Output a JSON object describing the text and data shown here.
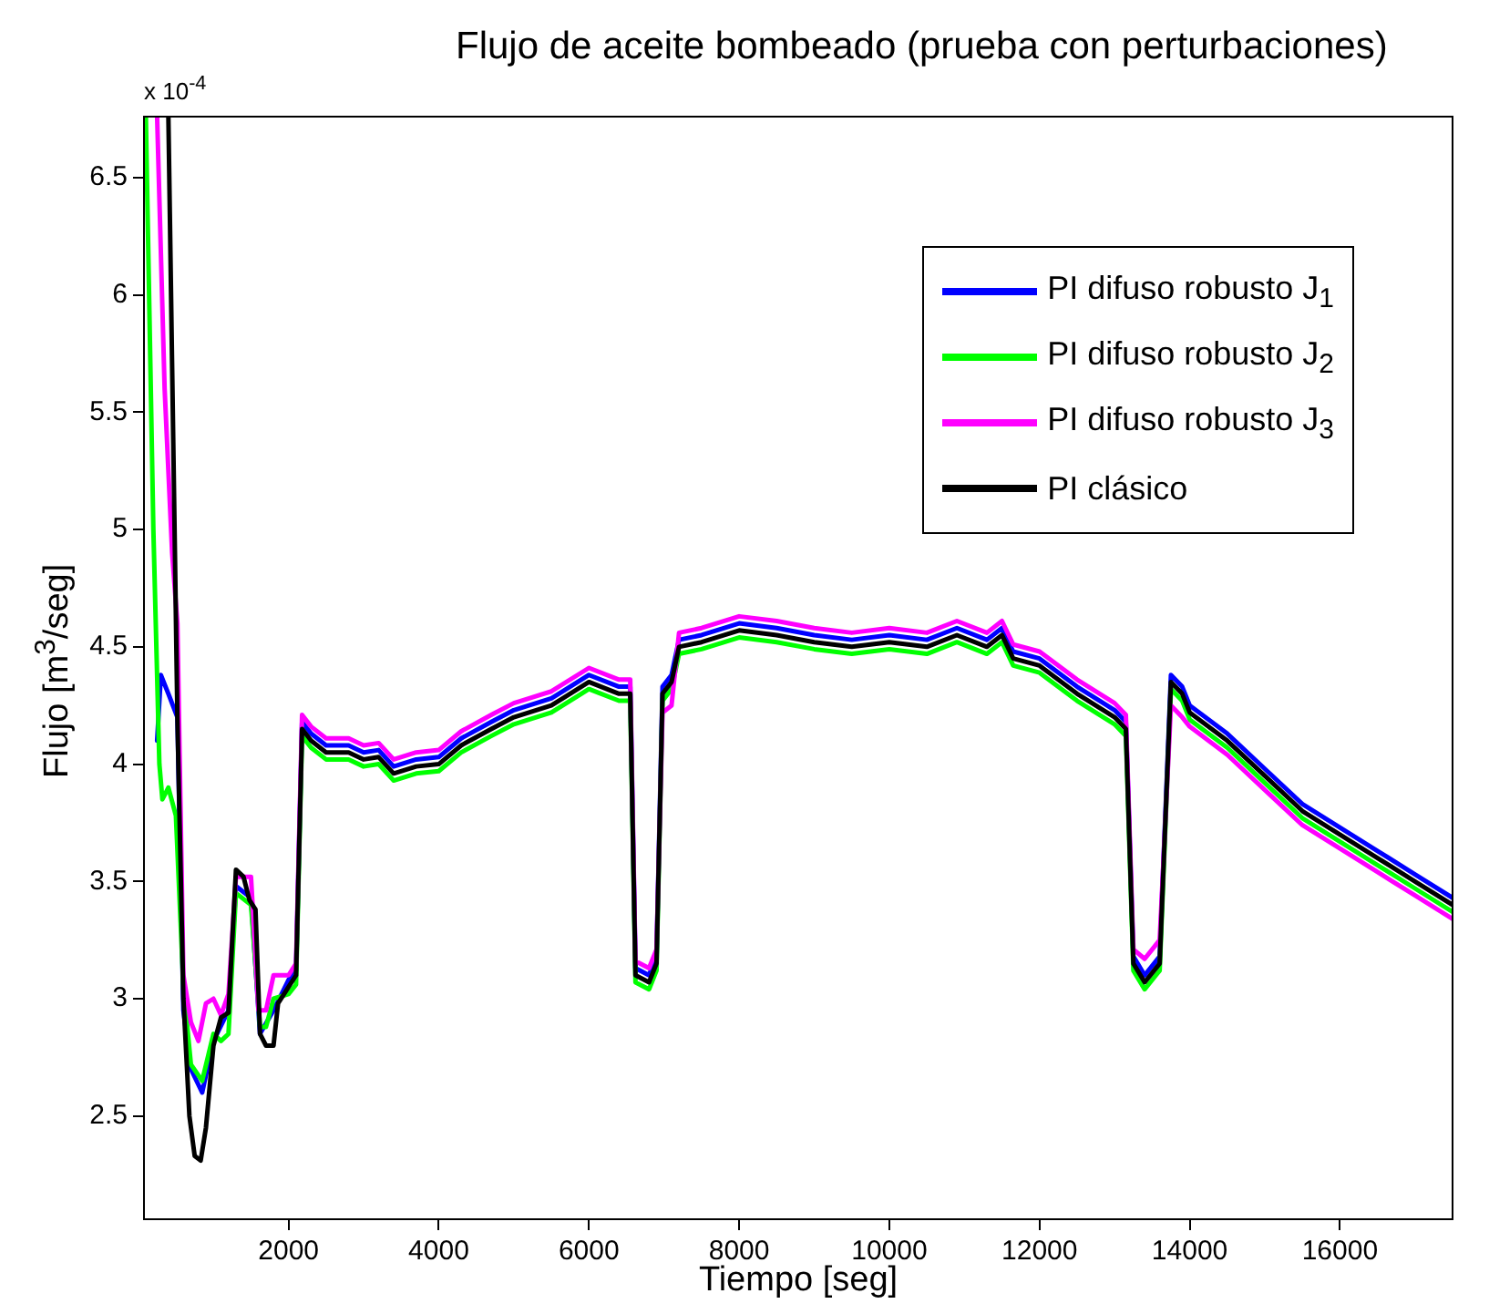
{
  "chart_data": {
    "type": "line",
    "title": "Flujo de aceite bombeado (prueba con perturbaciones)",
    "xlabel": "Tiempo [seg]",
    "ylabel": "Flujo [m$^{3}$/seg]",
    "annotations": [
      "x 10$^{-4}$"
    ],
    "xlim": [
      75,
      17500
    ],
    "xticks": [
      2000,
      4000,
      6000,
      8000,
      10000,
      12000,
      14000,
      16000
    ],
    "ylim": [
      2.06,
      6.76
    ],
    "yticks": [
      2.5,
      3,
      3.5,
      4,
      4.5,
      5,
      5.5,
      6,
      6.5
    ],
    "grid": false,
    "legend": "top right",
    "line_style": "solid",
    "marker": "none",
    "series": [
      {
        "name": "PI difuso robusto J$_{1}$",
        "color": "#0000ff",
        "x": [
          250,
          300,
          400,
          520,
          600,
          700,
          850,
          1000,
          1200,
          1300,
          1500,
          1620,
          1800,
          2000,
          2100,
          2180,
          2300,
          2500,
          2800,
          3000,
          3200,
          3400,
          3700,
          4000,
          4300,
          4700,
          5000,
          5500,
          6000,
          6400,
          6550,
          6620,
          6800,
          6900,
          6980,
          7100,
          7200,
          7500,
          8000,
          8500,
          9000,
          9500,
          10000,
          10500,
          10900,
          11300,
          11500,
          11650,
          12000,
          12500,
          13000,
          13150,
          13250,
          13400,
          13600,
          13750,
          13900,
          14000,
          14500,
          15000,
          15500,
          16000,
          16500,
          17000,
          17500
        ],
        "values": [
          4.1,
          4.38,
          4.3,
          4.2,
          2.95,
          2.7,
          2.6,
          2.82,
          2.95,
          3.48,
          3.43,
          2.85,
          2.95,
          3.08,
          3.12,
          4.18,
          4.13,
          4.08,
          4.08,
          4.05,
          4.06,
          3.99,
          4.02,
          4.03,
          4.11,
          4.18,
          4.23,
          4.28,
          4.38,
          4.33,
          4.33,
          3.13,
          3.1,
          3.18,
          4.33,
          4.38,
          4.53,
          4.55,
          4.6,
          4.58,
          4.55,
          4.53,
          4.55,
          4.53,
          4.58,
          4.53,
          4.58,
          4.48,
          4.45,
          4.33,
          4.23,
          4.18,
          3.18,
          3.1,
          3.18,
          4.38,
          4.33,
          4.25,
          4.13,
          3.98,
          3.83,
          3.73,
          3.63,
          3.53,
          3.43
        ]
      },
      {
        "name": "PI difuso robusto J$_{2}$",
        "color": "#00ff00",
        "x": [
          100,
          200,
          280,
          320,
          400,
          500,
          600,
          700,
          850,
          1000,
          1100,
          1200,
          1300,
          1500,
          1620,
          1700,
          1800,
          2000,
          2100,
          2180,
          2300,
          2500,
          2800,
          3000,
          3200,
          3400,
          3700,
          4000,
          4300,
          4700,
          5000,
          5500,
          6000,
          6400,
          6550,
          6620,
          6800,
          6900,
          6980,
          7100,
          7200,
          7500,
          8000,
          8500,
          9000,
          9500,
          10000,
          10500,
          10900,
          11300,
          11500,
          11650,
          12000,
          12500,
          13000,
          13150,
          13250,
          13400,
          13600,
          13750,
          13900,
          14000,
          14500,
          15000,
          15500,
          16000,
          16500,
          17000,
          17500
        ],
        "values": [
          6.76,
          5.0,
          4.0,
          3.85,
          3.9,
          3.78,
          3.05,
          2.72,
          2.65,
          2.85,
          2.82,
          2.85,
          3.45,
          3.4,
          2.88,
          2.88,
          3.0,
          3.02,
          3.06,
          4.12,
          4.07,
          4.02,
          4.02,
          3.99,
          4.0,
          3.93,
          3.96,
          3.97,
          4.05,
          4.12,
          4.17,
          4.22,
          4.32,
          4.27,
          4.27,
          3.07,
          3.04,
          3.12,
          4.27,
          4.32,
          4.47,
          4.49,
          4.54,
          4.52,
          4.49,
          4.47,
          4.49,
          4.47,
          4.52,
          4.47,
          4.52,
          4.42,
          4.39,
          4.27,
          4.17,
          4.12,
          3.12,
          3.04,
          3.12,
          4.32,
          4.27,
          4.19,
          4.07,
          3.92,
          3.77,
          3.67,
          3.57,
          3.47,
          3.37
        ]
      },
      {
        "name": "PI difuso robusto J$_{3}$",
        "color": "#ff00ff",
        "x": [
          250,
          350,
          450,
          520,
          600,
          700,
          800,
          900,
          1000,
          1100,
          1200,
          1300,
          1500,
          1600,
          1700,
          1800,
          2000,
          2100,
          2180,
          2300,
          2500,
          2800,
          3000,
          3200,
          3400,
          3700,
          4000,
          4300,
          4700,
          5000,
          5500,
          6000,
          6400,
          6550,
          6620,
          6800,
          6900,
          6980,
          7100,
          7200,
          7500,
          8000,
          8500,
          9000,
          9500,
          10000,
          10500,
          10900,
          11300,
          11500,
          11650,
          12000,
          12500,
          13000,
          13150,
          13250,
          13400,
          13600,
          13750,
          13900,
          14000,
          14500,
          15000,
          15500,
          16000,
          16500,
          17000,
          17500
        ],
        "values": [
          6.76,
          5.6,
          4.9,
          4.6,
          3.1,
          2.9,
          2.82,
          2.98,
          3.0,
          2.93,
          3.02,
          3.52,
          3.52,
          2.95,
          2.95,
          3.1,
          3.1,
          3.15,
          4.21,
          4.16,
          4.11,
          4.11,
          4.08,
          4.09,
          4.02,
          4.05,
          4.06,
          4.14,
          4.21,
          4.26,
          4.31,
          4.41,
          4.36,
          4.36,
          3.16,
          3.13,
          3.21,
          4.22,
          4.25,
          4.56,
          4.58,
          4.63,
          4.61,
          4.58,
          4.56,
          4.58,
          4.56,
          4.61,
          4.56,
          4.61,
          4.51,
          4.48,
          4.36,
          4.26,
          4.21,
          3.21,
          3.17,
          3.25,
          4.25,
          4.2,
          4.16,
          4.04,
          3.89,
          3.74,
          3.64,
          3.54,
          3.44,
          3.34
        ]
      },
      {
        "name": "PI clásico",
        "color": "#000000",
        "x": [
          400,
          520,
          600,
          680,
          750,
          830,
          900,
          1000,
          1100,
          1200,
          1300,
          1400,
          1480,
          1560,
          1620,
          1700,
          1800,
          1860,
          2000,
          2100,
          2180,
          2300,
          2500,
          2800,
          3000,
          3200,
          3400,
          3700,
          4000,
          4300,
          4700,
          5000,
          5500,
          6000,
          6400,
          6550,
          6620,
          6800,
          6900,
          6980,
          7100,
          7200,
          7500,
          8000,
          8500,
          9000,
          9500,
          10000,
          10500,
          10900,
          11300,
          11500,
          11650,
          12000,
          12500,
          13000,
          13150,
          13250,
          13400,
          13600,
          13750,
          13900,
          14000,
          14500,
          15000,
          15500,
          16000,
          16500,
          17000,
          17500
        ],
        "values": [
          6.76,
          4.2,
          3.0,
          2.5,
          2.33,
          2.31,
          2.45,
          2.8,
          2.92,
          2.94,
          3.55,
          3.52,
          3.42,
          3.38,
          2.85,
          2.8,
          2.8,
          2.98,
          3.05,
          3.1,
          4.15,
          4.1,
          4.05,
          4.05,
          4.02,
          4.03,
          3.96,
          3.99,
          4.0,
          4.08,
          4.15,
          4.2,
          4.25,
          4.35,
          4.3,
          4.3,
          3.1,
          3.07,
          3.15,
          4.3,
          4.35,
          4.5,
          4.52,
          4.57,
          4.55,
          4.52,
          4.5,
          4.52,
          4.5,
          4.55,
          4.5,
          4.55,
          4.45,
          4.42,
          4.3,
          4.2,
          4.15,
          3.15,
          3.07,
          3.15,
          4.35,
          4.3,
          4.22,
          4.1,
          3.95,
          3.8,
          3.7,
          3.6,
          3.5,
          3.4
        ]
      }
    ]
  }
}
